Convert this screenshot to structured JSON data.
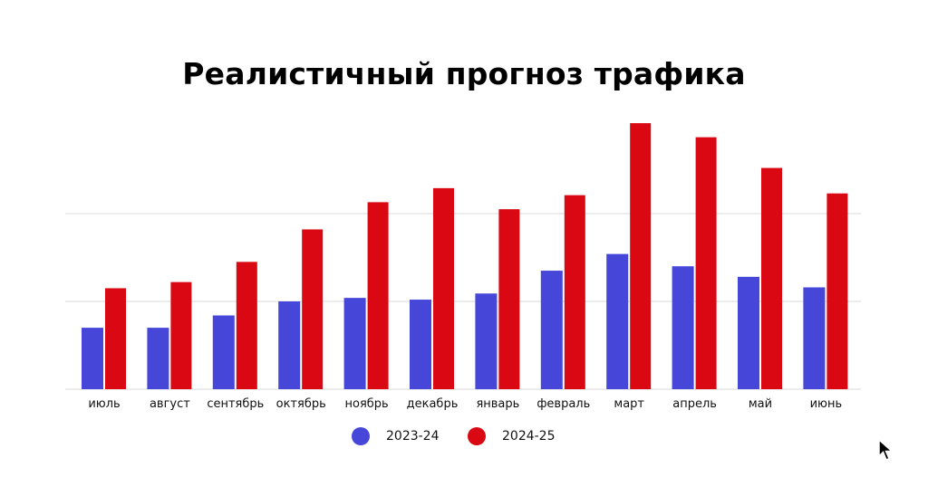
{
  "chart_data": {
    "type": "bar",
    "title": "Реалистичный прогноз трафика",
    "categories": [
      "июль",
      "август",
      "сентябрь",
      "октябрь",
      "ноябрь",
      "декабрь",
      "январь",
      "февраль",
      "март",
      "апрель",
      "май",
      "июнь"
    ],
    "series": [
      {
        "name": "2023-24",
        "color": "#4646d9",
        "values": [
          0.7,
          0.7,
          0.84,
          1.0,
          1.04,
          1.02,
          1.09,
          1.35,
          1.54,
          1.4,
          1.28,
          1.16
        ]
      },
      {
        "name": "2024-25",
        "color": "#d90812",
        "values": [
          1.15,
          1.22,
          1.45,
          1.82,
          2.13,
          2.29,
          2.05,
          2.21,
          3.03,
          2.87,
          2.52,
          2.23
        ]
      }
    ],
    "ylim": [
      0,
      3.1
    ],
    "gridlines": [
      0,
      1,
      2
    ],
    "y_tick_labels_shown": false,
    "grid": true,
    "legend_position": "bottom"
  },
  "cursor_icon": "arrow-cursor-icon"
}
